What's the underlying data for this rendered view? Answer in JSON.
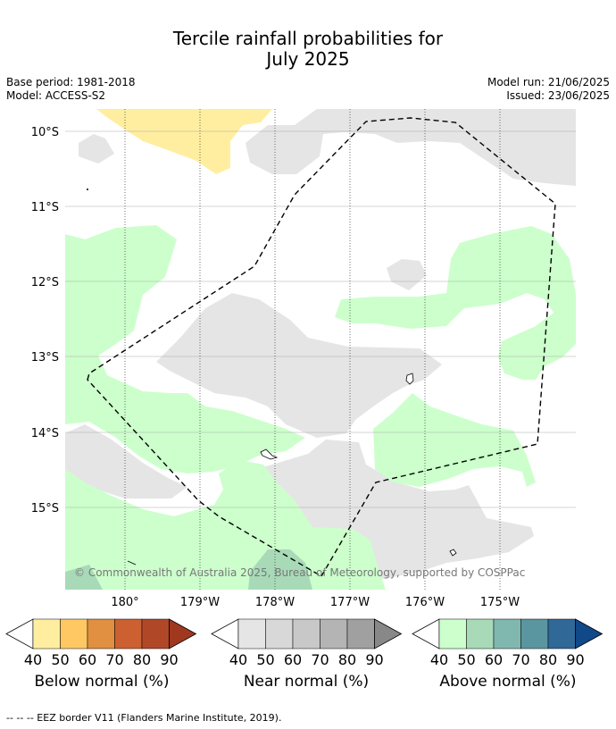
{
  "title_line1": "Tercile rainfall probabilities for",
  "title_line2": "July 2025",
  "base_period": "Base period: 1981-2018",
  "model": "Model: ACCESS-S2",
  "model_run": "Model run: 21/06/2025",
  "issued": "Issued: 23/06/2025",
  "lat_labels": [
    "10°S",
    "11°S",
    "12°S",
    "13°S",
    "14°S",
    "15°S"
  ],
  "lon_labels": [
    "180°",
    "179°W",
    "178°W",
    "177°W",
    "176°W",
    "175°W"
  ],
  "copyright": "© Commonwealth of Australia 2025, Bureau of Meteorology, supported by COSPPac",
  "colorbars": [
    {
      "label": "Below normal (%)",
      "ticks": [
        "40",
        "50",
        "60",
        "70",
        "80",
        "90"
      ],
      "colors": [
        "#ffeea0",
        "#ffc862",
        "#e09040",
        "#cc6030",
        "#b04828",
        "#a03820"
      ]
    },
    {
      "label": "Near normal (%)",
      "ticks": [
        "40",
        "50",
        "60",
        "70",
        "80",
        "90"
      ],
      "colors": [
        "#e5e5e5",
        "#d8d8d8",
        "#c8c8c8",
        "#b4b4b4",
        "#a0a0a0",
        "#888888"
      ]
    },
    {
      "label": "Above normal (%)",
      "ticks": [
        "40",
        "50",
        "60",
        "70",
        "80",
        "90"
      ],
      "colors": [
        "#ccffcc",
        "#a8dab8",
        "#80b8b0",
        "#5a96a0",
        "#306898",
        "#104888"
      ]
    }
  ],
  "legend_note": "-- -- -- EEZ border V11 (Flanders Marine Institute, 2019)."
}
